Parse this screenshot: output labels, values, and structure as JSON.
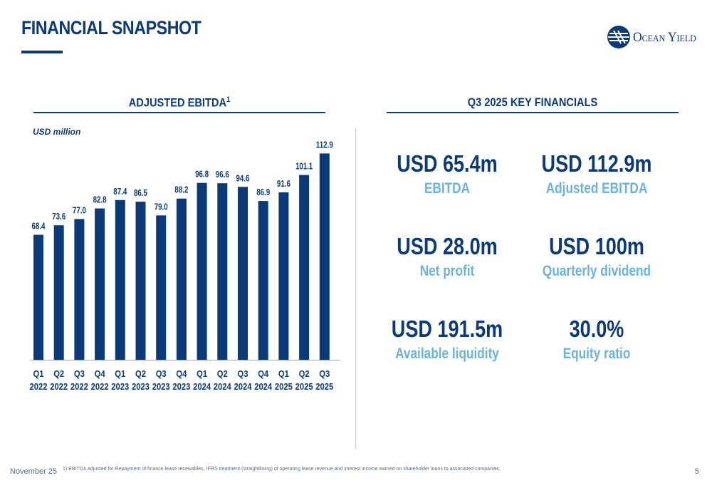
{
  "page": {
    "title": "FINANCIAL SNAPSHOT",
    "logo_text": "Ocean Yield",
    "footer_date": "November 25",
    "page_number": "5",
    "footnote": "1)  EBITDA adjusted for Repayment of finance lease receivables, IFRS treatment (straightlining) of operating lease revenue and interest income earned on shareholder loans to associated companies."
  },
  "colors": {
    "primary": "#0b3a7a",
    "accent": "#6bb2de"
  },
  "chart_section": {
    "heading": "ADJUSTED EBITDA",
    "heading_sup": "1",
    "unit": "USD million"
  },
  "chart_data": {
    "type": "bar",
    "title": "ADJUSTED EBITDA1",
    "ylabel": "USD million",
    "xlabel": "",
    "categories": [
      "Q1 2022",
      "Q2 2022",
      "Q3 2022",
      "Q4 2022",
      "Q1 2023",
      "Q2 2023",
      "Q3 2023",
      "Q4 2023",
      "Q1 2024",
      "Q2 2024",
      "Q3 2024",
      "Q4 2024",
      "Q1 2025",
      "Q2 2025",
      "Q3 2025"
    ],
    "category_lines": [
      [
        "Q1",
        "2022"
      ],
      [
        "Q2",
        "2022"
      ],
      [
        "Q3",
        "2022"
      ],
      [
        "Q4",
        "2022"
      ],
      [
        "Q1",
        "2023"
      ],
      [
        "Q2",
        "2023"
      ],
      [
        "Q3",
        "2023"
      ],
      [
        "Q4",
        "2023"
      ],
      [
        "Q1",
        "2024"
      ],
      [
        "Q2",
        "2024"
      ],
      [
        "Q3",
        "2024"
      ],
      [
        "Q4",
        "2024"
      ],
      [
        "Q1",
        "2025"
      ],
      [
        "Q2",
        "2025"
      ],
      [
        "Q3",
        "2025"
      ]
    ],
    "values": [
      68.4,
      73.6,
      77.0,
      82.8,
      87.4,
      86.5,
      79.0,
      88.2,
      96.8,
      96.6,
      94.6,
      86.9,
      91.6,
      101.1,
      112.9
    ],
    "value_labels": [
      "68.4",
      "73.6",
      "77.0",
      "82.8",
      "87.4",
      "86.5",
      "79.0",
      "88.2",
      "96.8",
      "96.6",
      "94.6",
      "86.9",
      "91.6",
      "101.1",
      "112.9"
    ],
    "ylim": [
      0,
      115
    ],
    "grid": false,
    "legend": "none",
    "bar_color": "#0b3a7a"
  },
  "kpi_section": {
    "heading": "Q3 2025 KEY FINANCIALS",
    "items": [
      {
        "value": "USD 65.4m",
        "label": "EBITDA"
      },
      {
        "value": "USD 112.9m",
        "label": "Adjusted EBITDA"
      },
      {
        "value": "USD 28.0m",
        "label": "Net profit"
      },
      {
        "value": "USD 100m",
        "label": "Quarterly dividend"
      },
      {
        "value": "USD 191.5m",
        "label": "Available liquidity"
      },
      {
        "value": "30.0%",
        "label": "Equity ratio"
      }
    ]
  }
}
